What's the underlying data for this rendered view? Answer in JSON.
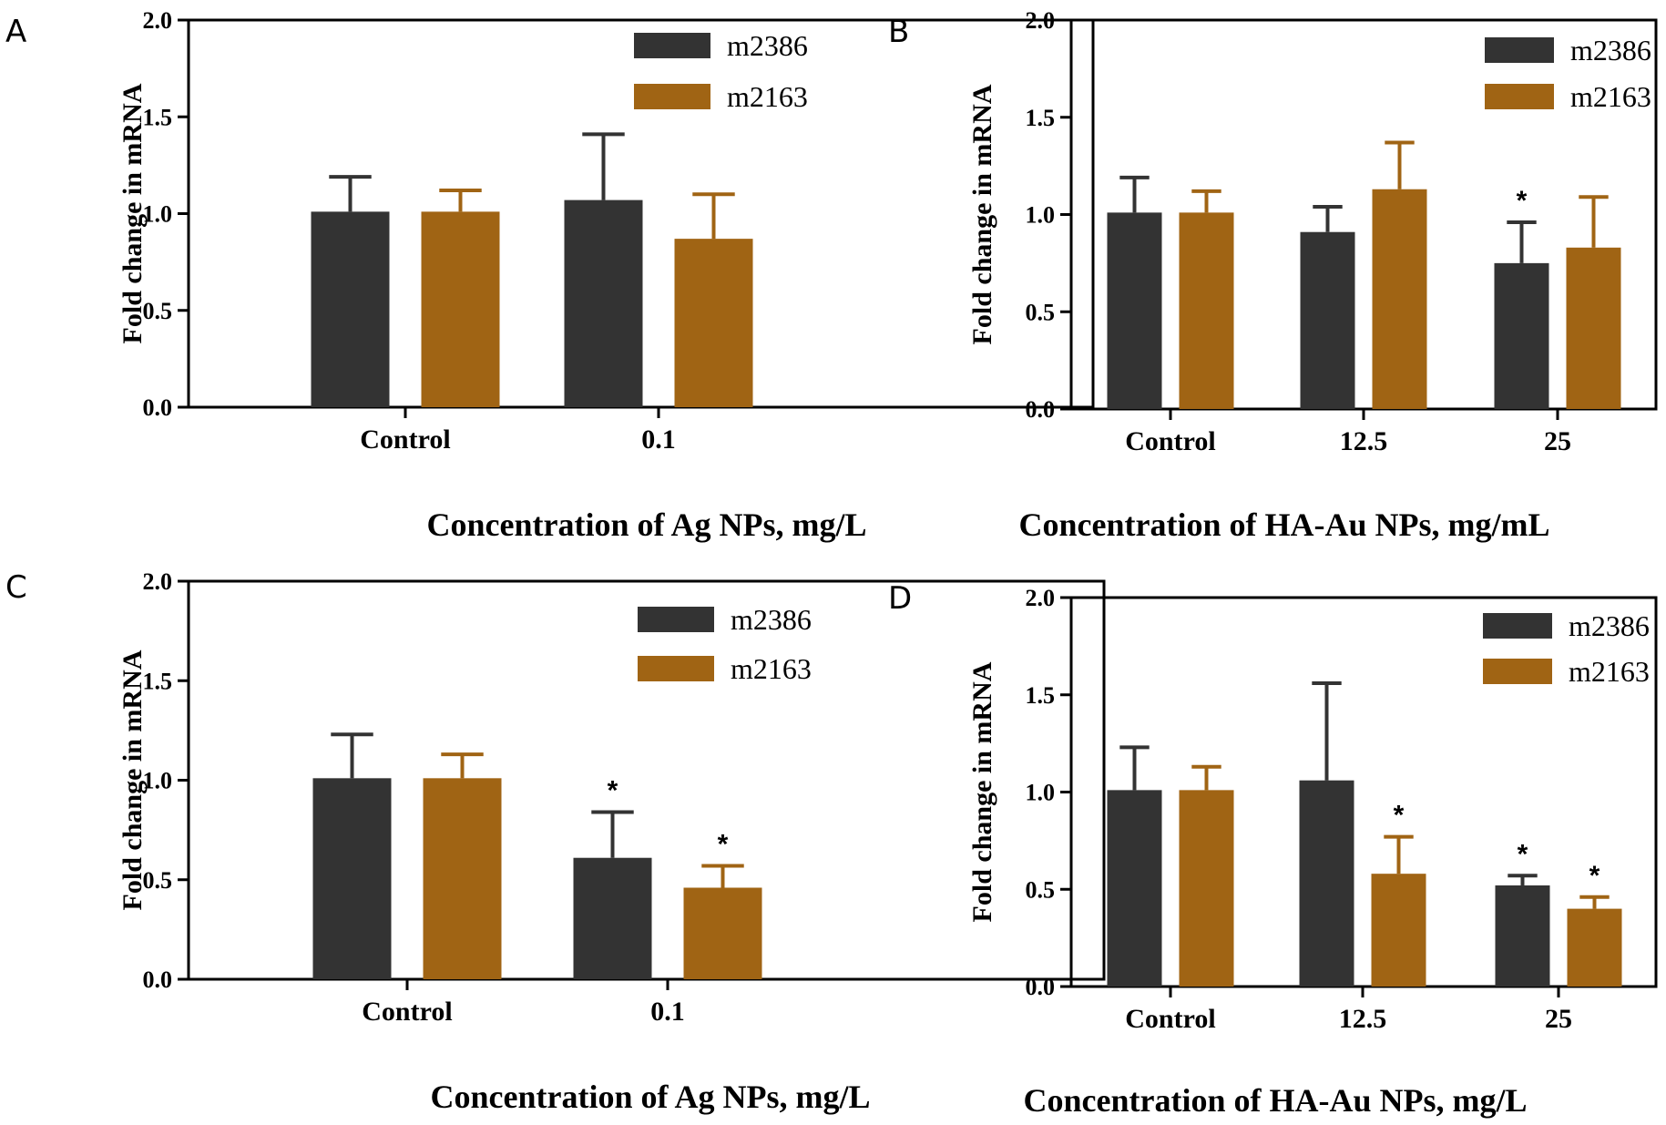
{
  "colors": {
    "m2386": "#333333",
    "m2163": "#a06414"
  },
  "chart_data": [
    {
      "panel": "A",
      "type": "bar",
      "categories": [
        "Control",
        "0.1"
      ],
      "series": [
        {
          "name": "m2386",
          "values": [
            1.01,
            1.07
          ],
          "errors": [
            0.18,
            0.34
          ],
          "significant": [
            false,
            false
          ]
        },
        {
          "name": "m2163",
          "values": [
            1.01,
            0.87
          ],
          "errors": [
            0.11,
            0.23
          ],
          "significant": [
            false,
            false
          ]
        }
      ],
      "ylabel": "Fold change in mRNA",
      "xlabel": "Concentration of Ag NPs, mg/L",
      "ylim": [
        0,
        2.0
      ],
      "yticks": [
        "0.0",
        "0.5",
        "1.0",
        "1.5",
        "2.0"
      ],
      "legend": "top-right",
      "grid": false
    },
    {
      "panel": "B",
      "type": "bar",
      "categories": [
        "Control",
        "12.5",
        "25"
      ],
      "series": [
        {
          "name": "m2386",
          "values": [
            1.01,
            0.91,
            0.75
          ],
          "errors": [
            0.18,
            0.13,
            0.21
          ],
          "significant": [
            false,
            false,
            true
          ]
        },
        {
          "name": "m2163",
          "values": [
            1.01,
            1.13,
            0.83
          ],
          "errors": [
            0.11,
            0.24,
            0.26
          ],
          "significant": [
            false,
            false,
            false
          ]
        }
      ],
      "ylabel": "Fold change in mRNA",
      "xlabel": "Concentration of HA-Au NPs, mg/mL",
      "ylim": [
        0,
        2.0
      ],
      "yticks": [
        "0.0",
        "0.5",
        "1.0",
        "1.5",
        "2.0"
      ],
      "legend": "top-right",
      "grid": false
    },
    {
      "panel": "C",
      "type": "bar",
      "categories": [
        "Control",
        "0.1"
      ],
      "series": [
        {
          "name": "m2386",
          "values": [
            1.01,
            0.61
          ],
          "errors": [
            0.22,
            0.23
          ],
          "significant": [
            false,
            true
          ]
        },
        {
          "name": "m2163",
          "values": [
            1.01,
            0.46
          ],
          "errors": [
            0.12,
            0.11
          ],
          "significant": [
            false,
            true
          ]
        }
      ],
      "ylabel": "Fold change in mRNA",
      "xlabel": "Concentration of Ag NPs, mg/L",
      "ylim": [
        0,
        2.0
      ],
      "yticks": [
        "0.0",
        "0.5",
        "1.0",
        "1.5",
        "2.0"
      ],
      "legend": "top-right",
      "grid": false
    },
    {
      "panel": "D",
      "type": "bar",
      "categories": [
        "Control",
        "12.5",
        "25"
      ],
      "series": [
        {
          "name": "m2386",
          "values": [
            1.01,
            1.06,
            0.52
          ],
          "errors": [
            0.22,
            0.5,
            0.05
          ],
          "significant": [
            false,
            false,
            true
          ]
        },
        {
          "name": "m2163",
          "values": [
            1.01,
            0.58,
            0.4
          ],
          "errors": [
            0.12,
            0.19,
            0.06
          ],
          "significant": [
            false,
            true,
            true
          ]
        }
      ],
      "ylabel": "Fold change in mRNA",
      "xlabel": "Concentration of HA-Au NPs, mg/L",
      "ylim": [
        0,
        2.0
      ],
      "yticks": [
        "0.0",
        "0.5",
        "1.0",
        "1.5",
        "2.0"
      ],
      "legend": "top-right",
      "grid": false
    }
  ]
}
